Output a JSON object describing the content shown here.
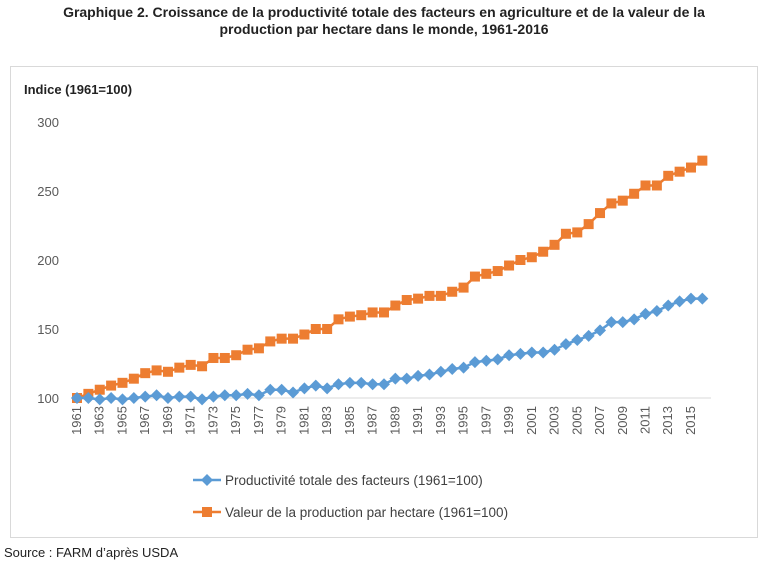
{
  "title_line1": "Graphique 2. Croissance de la productivité totale des facteurs en agriculture et de la valeur de la",
  "title_line2": "production par hectare dans le monde, 1961-2016",
  "source": "Source : FARM d’après USDA",
  "chart_data": {
    "type": "line",
    "title": "Graphique 2. Croissance de la productivité totale des facteurs en agriculture et de la valeur de la production par hectare dans le monde, 1961-2016",
    "ylabel": "Indice (1961=100)",
    "xlabel": "",
    "ylim": [
      100,
      300
    ],
    "yticks": [
      100,
      150,
      200,
      250,
      300
    ],
    "grid": false,
    "legend": "bottom",
    "x": [
      1961,
      1962,
      1963,
      1964,
      1965,
      1966,
      1967,
      1968,
      1969,
      1970,
      1971,
      1972,
      1973,
      1974,
      1975,
      1976,
      1977,
      1978,
      1979,
      1980,
      1981,
      1982,
      1983,
      1984,
      1985,
      1986,
      1987,
      1988,
      1989,
      1990,
      1991,
      1992,
      1993,
      1994,
      1995,
      1996,
      1997,
      1998,
      1999,
      2000,
      2001,
      2002,
      2003,
      2004,
      2005,
      2006,
      2007,
      2008,
      2009,
      2010,
      2011,
      2012,
      2013,
      2014,
      2015,
      2016
    ],
    "xtick_labels": [
      "1961",
      "1963",
      "1965",
      "1967",
      "1969",
      "1971",
      "1973",
      "1975",
      "1977",
      "1979",
      "1981",
      "1983",
      "1985",
      "1987",
      "1989",
      "1991",
      "1993",
      "1995",
      "1997",
      "1999",
      "2001",
      "2003",
      "2005",
      "2007",
      "2009",
      "2011",
      "2013",
      "2015"
    ],
    "series": [
      {
        "name": "Productivité totale des facteurs (1961=100)",
        "color": "#5b9bd5",
        "marker": "diamond",
        "values": [
          100,
          100,
          99,
          100,
          99,
          100,
          101,
          102,
          100,
          101,
          101,
          99,
          101,
          102,
          102,
          103,
          102,
          106,
          106,
          104,
          107,
          109,
          107,
          110,
          111,
          111,
          110,
          110,
          114,
          114,
          116,
          117,
          119,
          121,
          122,
          126,
          127,
          128,
          131,
          132,
          133,
          133,
          135,
          139,
          142,
          145,
          149,
          155,
          155,
          157,
          161,
          163,
          167,
          170,
          172,
          172
        ]
      },
      {
        "name": "Valeur de la production par hectare (1961=100)",
        "color": "#ed7d31",
        "marker": "square",
        "values": [
          100,
          103,
          106,
          109,
          111,
          114,
          118,
          120,
          119,
          122,
          124,
          123,
          129,
          129,
          131,
          135,
          136,
          141,
          143,
          143,
          146,
          150,
          150,
          157,
          159,
          160,
          162,
          162,
          167,
          171,
          172,
          174,
          174,
          177,
          180,
          188,
          190,
          192,
          196,
          200,
          202,
          206,
          211,
          219,
          220,
          226,
          234,
          241,
          243,
          248,
          254,
          254,
          261,
          264,
          267,
          272
        ]
      }
    ]
  }
}
